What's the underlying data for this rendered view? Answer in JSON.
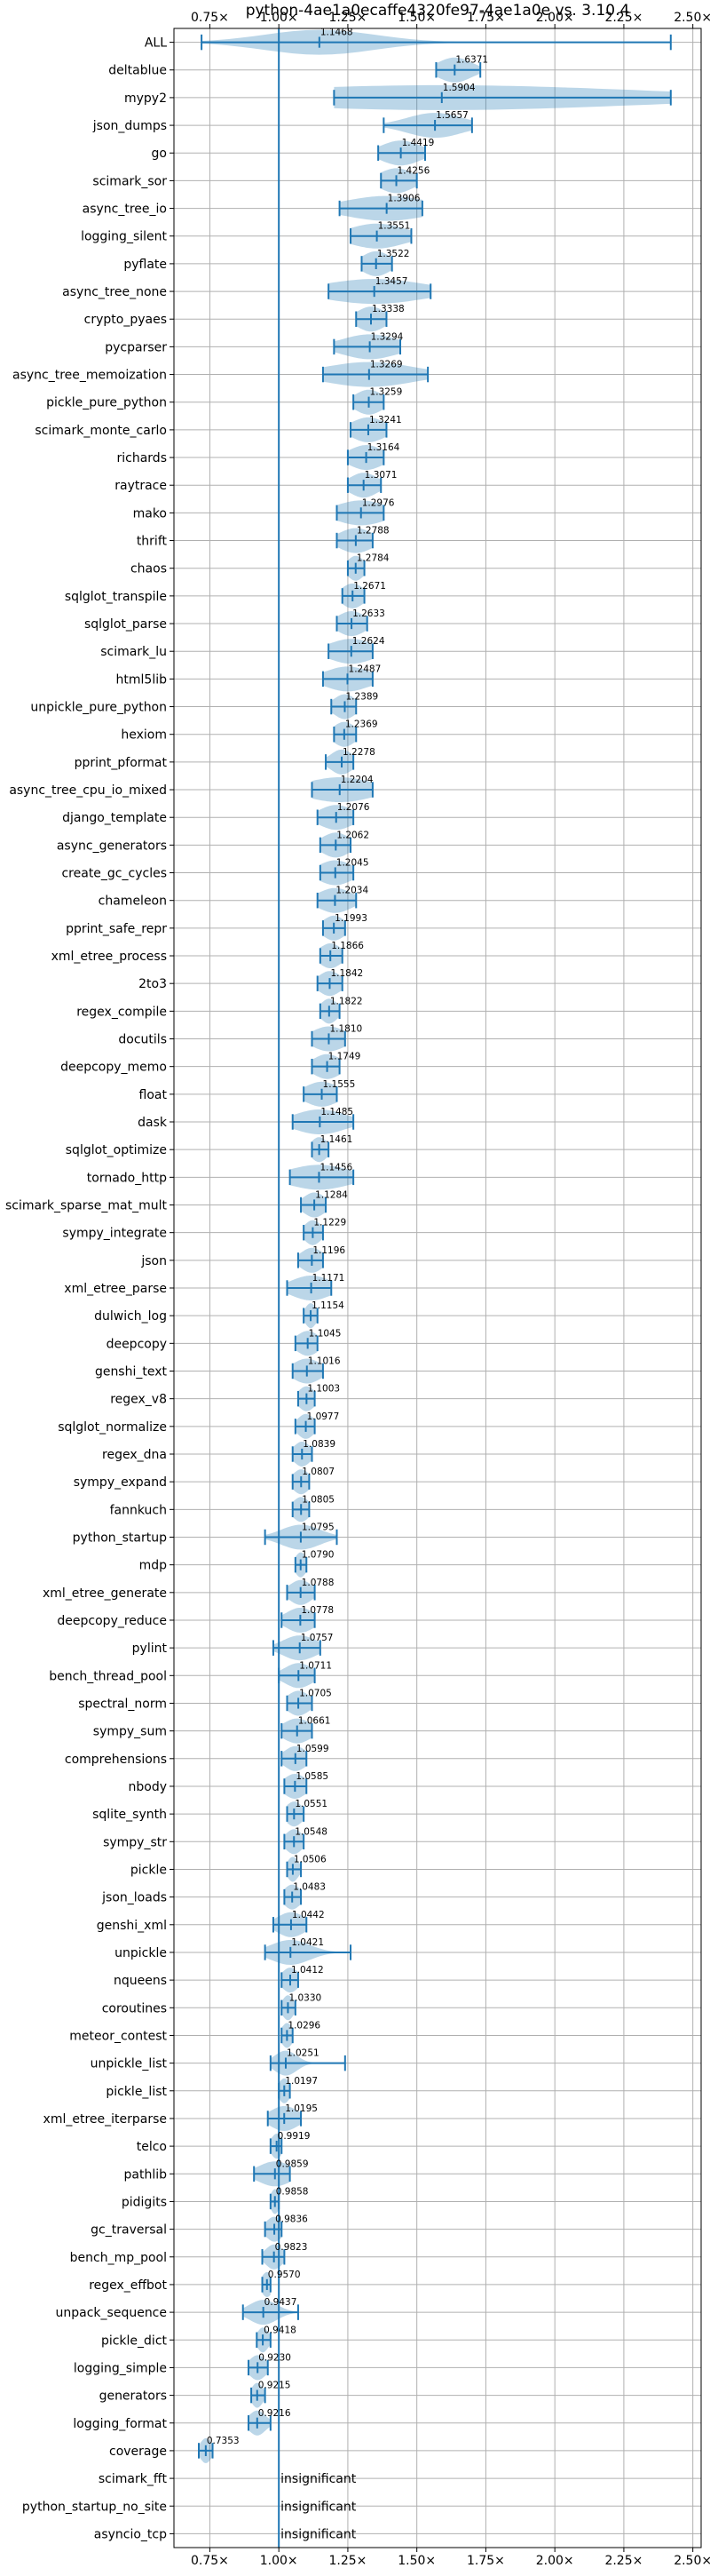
{
  "chart_data": {
    "type": "violin",
    "title": "python-4ae1a0ecaffe4320fe97-4ae1a0e vs. 3.10.4",
    "xlim": [
      0.62,
      2.53
    ],
    "x_ticks": [
      0.75,
      1.0,
      1.25,
      1.5,
      1.75,
      2.0,
      2.25,
      2.5
    ],
    "x_tick_labels": [
      "0.75×",
      "1.00×",
      "1.25×",
      "1.50×",
      "1.75×",
      "2.00×",
      "2.25×",
      "2.50×"
    ],
    "x_ticks_top_and_bottom": true,
    "reference_line": 1.0,
    "grid": true,
    "colors": {
      "series": "#1f77b4",
      "grid": "#b0b0b0"
    },
    "insignificant_label": "insignificant",
    "benchmarks": [
      {
        "name": "ALL",
        "value": 1.1468,
        "label": "1.1468",
        "min": 0.72,
        "max": 2.42,
        "spread": 0.2
      },
      {
        "name": "deltablue",
        "value": 1.6371,
        "label": "1.6371",
        "min": 1.57,
        "max": 1.73,
        "spread": 0.06
      },
      {
        "name": "mypy2",
        "value": 1.5904,
        "label": "1.5904",
        "min": 1.2,
        "max": 2.42,
        "spread": 0.7
      },
      {
        "name": "json_dumps",
        "value": 1.5657,
        "label": "1.5657",
        "min": 1.38,
        "max": 1.7,
        "spread": 0.1
      },
      {
        "name": "go",
        "value": 1.4419,
        "label": "1.4419",
        "min": 1.36,
        "max": 1.53,
        "spread": 0.07
      },
      {
        "name": "scimark_sor",
        "value": 1.4256,
        "label": "1.4256",
        "min": 1.37,
        "max": 1.5,
        "spread": 0.06
      },
      {
        "name": "async_tree_io",
        "value": 1.3906,
        "label": "1.3906",
        "min": 1.22,
        "max": 1.52,
        "spread": 0.15
      },
      {
        "name": "logging_silent",
        "value": 1.3551,
        "label": "1.3551",
        "min": 1.26,
        "max": 1.48,
        "spread": 0.1
      },
      {
        "name": "pyflate",
        "value": 1.3522,
        "label": "1.3522",
        "min": 1.3,
        "max": 1.41,
        "spread": 0.05
      },
      {
        "name": "async_tree_none",
        "value": 1.3457,
        "label": "1.3457",
        "min": 1.18,
        "max": 1.55,
        "spread": 0.18
      },
      {
        "name": "crypto_pyaes",
        "value": 1.3338,
        "label": "1.3338",
        "min": 1.28,
        "max": 1.39,
        "spread": 0.05
      },
      {
        "name": "pycparser",
        "value": 1.3294,
        "label": "1.3294",
        "min": 1.2,
        "max": 1.44,
        "spread": 0.1
      },
      {
        "name": "async_tree_memoization",
        "value": 1.3269,
        "label": "1.3269",
        "min": 1.16,
        "max": 1.54,
        "spread": 0.16
      },
      {
        "name": "pickle_pure_python",
        "value": 1.3259,
        "label": "1.3259",
        "min": 1.27,
        "max": 1.38,
        "spread": 0.05
      },
      {
        "name": "scimark_monte_carlo",
        "value": 1.3241,
        "label": "1.3241",
        "min": 1.26,
        "max": 1.39,
        "spread": 0.06
      },
      {
        "name": "richards",
        "value": 1.3164,
        "label": "1.3164",
        "min": 1.25,
        "max": 1.38,
        "spread": 0.06
      },
      {
        "name": "raytrace",
        "value": 1.3071,
        "label": "1.3071",
        "min": 1.25,
        "max": 1.37,
        "spread": 0.05
      },
      {
        "name": "mako",
        "value": 1.2976,
        "label": "1.2976",
        "min": 1.21,
        "max": 1.38,
        "spread": 0.09
      },
      {
        "name": "thrift",
        "value": 1.2788,
        "label": "1.2788",
        "min": 1.21,
        "max": 1.34,
        "spread": 0.06
      },
      {
        "name": "chaos",
        "value": 1.2784,
        "label": "1.2784",
        "min": 1.25,
        "max": 1.31,
        "spread": 0.03
      },
      {
        "name": "sqlglot_transpile",
        "value": 1.2671,
        "label": "1.2671",
        "min": 1.23,
        "max": 1.31,
        "spread": 0.04
      },
      {
        "name": "sqlglot_parse",
        "value": 1.2633,
        "label": "1.2633",
        "min": 1.21,
        "max": 1.32,
        "spread": 0.05
      },
      {
        "name": "scimark_lu",
        "value": 1.2624,
        "label": "1.2624",
        "min": 1.18,
        "max": 1.34,
        "spread": 0.08
      },
      {
        "name": "html5lib",
        "value": 1.2487,
        "label": "1.2487",
        "min": 1.16,
        "max": 1.34,
        "spread": 0.08
      },
      {
        "name": "unpickle_pure_python",
        "value": 1.2389,
        "label": "1.2389",
        "min": 1.19,
        "max": 1.28,
        "spread": 0.04
      },
      {
        "name": "hexiom",
        "value": 1.2369,
        "label": "1.2369",
        "min": 1.2,
        "max": 1.28,
        "spread": 0.04
      },
      {
        "name": "pprint_pformat",
        "value": 1.2278,
        "label": "1.2278",
        "min": 1.17,
        "max": 1.27,
        "spread": 0.04
      },
      {
        "name": "async_tree_cpu_io_mixed",
        "value": 1.2204,
        "label": "1.2204",
        "min": 1.12,
        "max": 1.34,
        "spread": 0.12
      },
      {
        "name": "django_template",
        "value": 1.2076,
        "label": "1.2076",
        "min": 1.14,
        "max": 1.27,
        "spread": 0.06
      },
      {
        "name": "async_generators",
        "value": 1.2062,
        "label": "1.2062",
        "min": 1.15,
        "max": 1.26,
        "spread": 0.05
      },
      {
        "name": "create_gc_cycles",
        "value": 1.2045,
        "label": "1.2045",
        "min": 1.15,
        "max": 1.27,
        "spread": 0.06
      },
      {
        "name": "chameleon",
        "value": 1.2034,
        "label": "1.2034",
        "min": 1.14,
        "max": 1.28,
        "spread": 0.06
      },
      {
        "name": "pprint_safe_repr",
        "value": 1.1993,
        "label": "1.1993",
        "min": 1.16,
        "max": 1.24,
        "spread": 0.04
      },
      {
        "name": "xml_etree_process",
        "value": 1.1866,
        "label": "1.1866",
        "min": 1.15,
        "max": 1.23,
        "spread": 0.04
      },
      {
        "name": "2to3",
        "value": 1.1842,
        "label": "1.1842",
        "min": 1.14,
        "max": 1.23,
        "spread": 0.04
      },
      {
        "name": "regex_compile",
        "value": 1.1822,
        "label": "1.1822",
        "min": 1.15,
        "max": 1.22,
        "spread": 0.03
      },
      {
        "name": "docutils",
        "value": 1.181,
        "label": "1.1810",
        "min": 1.12,
        "max": 1.24,
        "spread": 0.06
      },
      {
        "name": "deepcopy_memo",
        "value": 1.1749,
        "label": "1.1749",
        "min": 1.12,
        "max": 1.22,
        "spread": 0.05
      },
      {
        "name": "float",
        "value": 1.1555,
        "label": "1.1555",
        "min": 1.09,
        "max": 1.21,
        "spread": 0.06
      },
      {
        "name": "dask",
        "value": 1.1485,
        "label": "1.1485",
        "min": 1.05,
        "max": 1.27,
        "spread": 0.09
      },
      {
        "name": "sqlglot_optimize",
        "value": 1.1461,
        "label": "1.1461",
        "min": 1.12,
        "max": 1.18,
        "spread": 0.03
      },
      {
        "name": "tornado_http",
        "value": 1.1456,
        "label": "1.1456",
        "min": 1.04,
        "max": 1.27,
        "spread": 0.11
      },
      {
        "name": "scimark_sparse_mat_mult",
        "value": 1.1284,
        "label": "1.1284",
        "min": 1.08,
        "max": 1.17,
        "spread": 0.04
      },
      {
        "name": "sympy_integrate",
        "value": 1.1229,
        "label": "1.1229",
        "min": 1.09,
        "max": 1.16,
        "spread": 0.03
      },
      {
        "name": "json",
        "value": 1.1196,
        "label": "1.1196",
        "min": 1.07,
        "max": 1.16,
        "spread": 0.04
      },
      {
        "name": "xml_etree_parse",
        "value": 1.1171,
        "label": "1.1171",
        "min": 1.03,
        "max": 1.19,
        "spread": 0.07
      },
      {
        "name": "dulwich_log",
        "value": 1.1154,
        "label": "1.1154",
        "min": 1.09,
        "max": 1.14,
        "spread": 0.02
      },
      {
        "name": "deepcopy",
        "value": 1.1045,
        "label": "1.1045",
        "min": 1.06,
        "max": 1.14,
        "spread": 0.04
      },
      {
        "name": "genshi_text",
        "value": 1.1016,
        "label": "1.1016",
        "min": 1.05,
        "max": 1.16,
        "spread": 0.05
      },
      {
        "name": "regex_v8",
        "value": 1.1003,
        "label": "1.1003",
        "min": 1.07,
        "max": 1.13,
        "spread": 0.03
      },
      {
        "name": "sqlglot_normalize",
        "value": 1.0977,
        "label": "1.0977",
        "min": 1.06,
        "max": 1.13,
        "spread": 0.03
      },
      {
        "name": "regex_dna",
        "value": 1.0839,
        "label": "1.0839",
        "min": 1.05,
        "max": 1.12,
        "spread": 0.03
      },
      {
        "name": "sympy_expand",
        "value": 1.0807,
        "label": "1.0807",
        "min": 1.05,
        "max": 1.11,
        "spread": 0.03
      },
      {
        "name": "fannkuch",
        "value": 1.0805,
        "label": "1.0805",
        "min": 1.05,
        "max": 1.11,
        "spread": 0.03
      },
      {
        "name": "python_startup",
        "value": 1.0795,
        "label": "1.0795",
        "min": 0.95,
        "max": 1.21,
        "spread": 0.07
      },
      {
        "name": "mdp",
        "value": 1.079,
        "label": "1.0790",
        "min": 1.06,
        "max": 1.1,
        "spread": 0.02
      },
      {
        "name": "xml_etree_generate",
        "value": 1.0788,
        "label": "1.0788",
        "min": 1.03,
        "max": 1.13,
        "spread": 0.04
      },
      {
        "name": "deepcopy_reduce",
        "value": 1.0778,
        "label": "1.0778",
        "min": 1.01,
        "max": 1.13,
        "spread": 0.05
      },
      {
        "name": "pylint",
        "value": 1.0757,
        "label": "1.0757",
        "min": 0.98,
        "max": 1.15,
        "spread": 0.06
      },
      {
        "name": "bench_thread_pool",
        "value": 1.0711,
        "label": "1.0711",
        "min": 1.0,
        "max": 1.13,
        "spread": 0.05
      },
      {
        "name": "spectral_norm",
        "value": 1.0705,
        "label": "1.0705",
        "min": 1.03,
        "max": 1.12,
        "spread": 0.04
      },
      {
        "name": "sympy_sum",
        "value": 1.0661,
        "label": "1.0661",
        "min": 1.01,
        "max": 1.12,
        "spread": 0.05
      },
      {
        "name": "comprehensions",
        "value": 1.0599,
        "label": "1.0599",
        "min": 1.01,
        "max": 1.1,
        "spread": 0.04
      },
      {
        "name": "nbody",
        "value": 1.0585,
        "label": "1.0585",
        "min": 1.02,
        "max": 1.1,
        "spread": 0.04
      },
      {
        "name": "sqlite_synth",
        "value": 1.0551,
        "label": "1.0551",
        "min": 1.03,
        "max": 1.09,
        "spread": 0.03
      },
      {
        "name": "sympy_str",
        "value": 1.0548,
        "label": "1.0548",
        "min": 1.02,
        "max": 1.09,
        "spread": 0.03
      },
      {
        "name": "pickle",
        "value": 1.0506,
        "label": "1.0506",
        "min": 1.03,
        "max": 1.08,
        "spread": 0.02
      },
      {
        "name": "json_loads",
        "value": 1.0483,
        "label": "1.0483",
        "min": 1.02,
        "max": 1.08,
        "spread": 0.03
      },
      {
        "name": "genshi_xml",
        "value": 1.0442,
        "label": "1.0442",
        "min": 0.98,
        "max": 1.1,
        "spread": 0.05
      },
      {
        "name": "unpickle",
        "value": 1.0421,
        "label": "1.0421",
        "min": 0.95,
        "max": 1.26,
        "spread": 0.07
      },
      {
        "name": "nqueens",
        "value": 1.0412,
        "label": "1.0412",
        "min": 1.01,
        "max": 1.07,
        "spread": 0.03
      },
      {
        "name": "coroutines",
        "value": 1.033,
        "label": "1.0330",
        "min": 1.01,
        "max": 1.06,
        "spread": 0.02
      },
      {
        "name": "meteor_contest",
        "value": 1.0296,
        "label": "1.0296",
        "min": 1.01,
        "max": 1.05,
        "spread": 0.02
      },
      {
        "name": "unpickle_list",
        "value": 1.0251,
        "label": "1.0251",
        "min": 0.97,
        "max": 1.24,
        "spread": 0.04
      },
      {
        "name": "pickle_list",
        "value": 1.0197,
        "label": "1.0197",
        "min": 1.0,
        "max": 1.04,
        "spread": 0.02
      },
      {
        "name": "xml_etree_iterparse",
        "value": 1.0195,
        "label": "1.0195",
        "min": 0.96,
        "max": 1.08,
        "spread": 0.05
      },
      {
        "name": "telco",
        "value": 0.9919,
        "label": "0.9919",
        "min": 0.97,
        "max": 1.01,
        "spread": 0.02
      },
      {
        "name": "pathlib",
        "value": 0.9859,
        "label": "0.9859",
        "min": 0.91,
        "max": 1.04,
        "spread": 0.06
      },
      {
        "name": "pidigits",
        "value": 0.9858,
        "label": "0.9858",
        "min": 0.97,
        "max": 1.0,
        "spread": 0.015
      },
      {
        "name": "gc_traversal",
        "value": 0.9836,
        "label": "0.9836",
        "min": 0.95,
        "max": 1.01,
        "spread": 0.03
      },
      {
        "name": "bench_mp_pool",
        "value": 0.9823,
        "label": "0.9823",
        "min": 0.94,
        "max": 1.02,
        "spread": 0.03
      },
      {
        "name": "regex_effbot",
        "value": 0.957,
        "label": "0.9570",
        "min": 0.94,
        "max": 0.97,
        "spread": 0.02
      },
      {
        "name": "unpack_sequence",
        "value": 0.9437,
        "label": "0.9437",
        "min": 0.87,
        "max": 1.07,
        "spread": 0.05
      },
      {
        "name": "pickle_dict",
        "value": 0.9418,
        "label": "0.9418",
        "min": 0.92,
        "max": 0.97,
        "spread": 0.02
      },
      {
        "name": "logging_simple",
        "value": 0.923,
        "label": "0.9230",
        "min": 0.89,
        "max": 0.96,
        "spread": 0.03
      },
      {
        "name": "generators",
        "value": 0.9215,
        "label": "0.9215",
        "min": 0.9,
        "max": 0.95,
        "spread": 0.02
      },
      {
        "name": "logging_format",
        "value": 0.9216,
        "label": "0.9216",
        "min": 0.89,
        "max": 0.97,
        "spread": 0.03
      },
      {
        "name": "coverage",
        "value": 0.7353,
        "label": "0.7353",
        "min": 0.71,
        "max": 0.76,
        "spread": 0.02
      },
      {
        "name": "scimark_fft",
        "insignificant": true
      },
      {
        "name": "python_startup_no_site",
        "insignificant": true
      },
      {
        "name": "asyncio_tcp",
        "insignificant": true
      }
    ]
  }
}
